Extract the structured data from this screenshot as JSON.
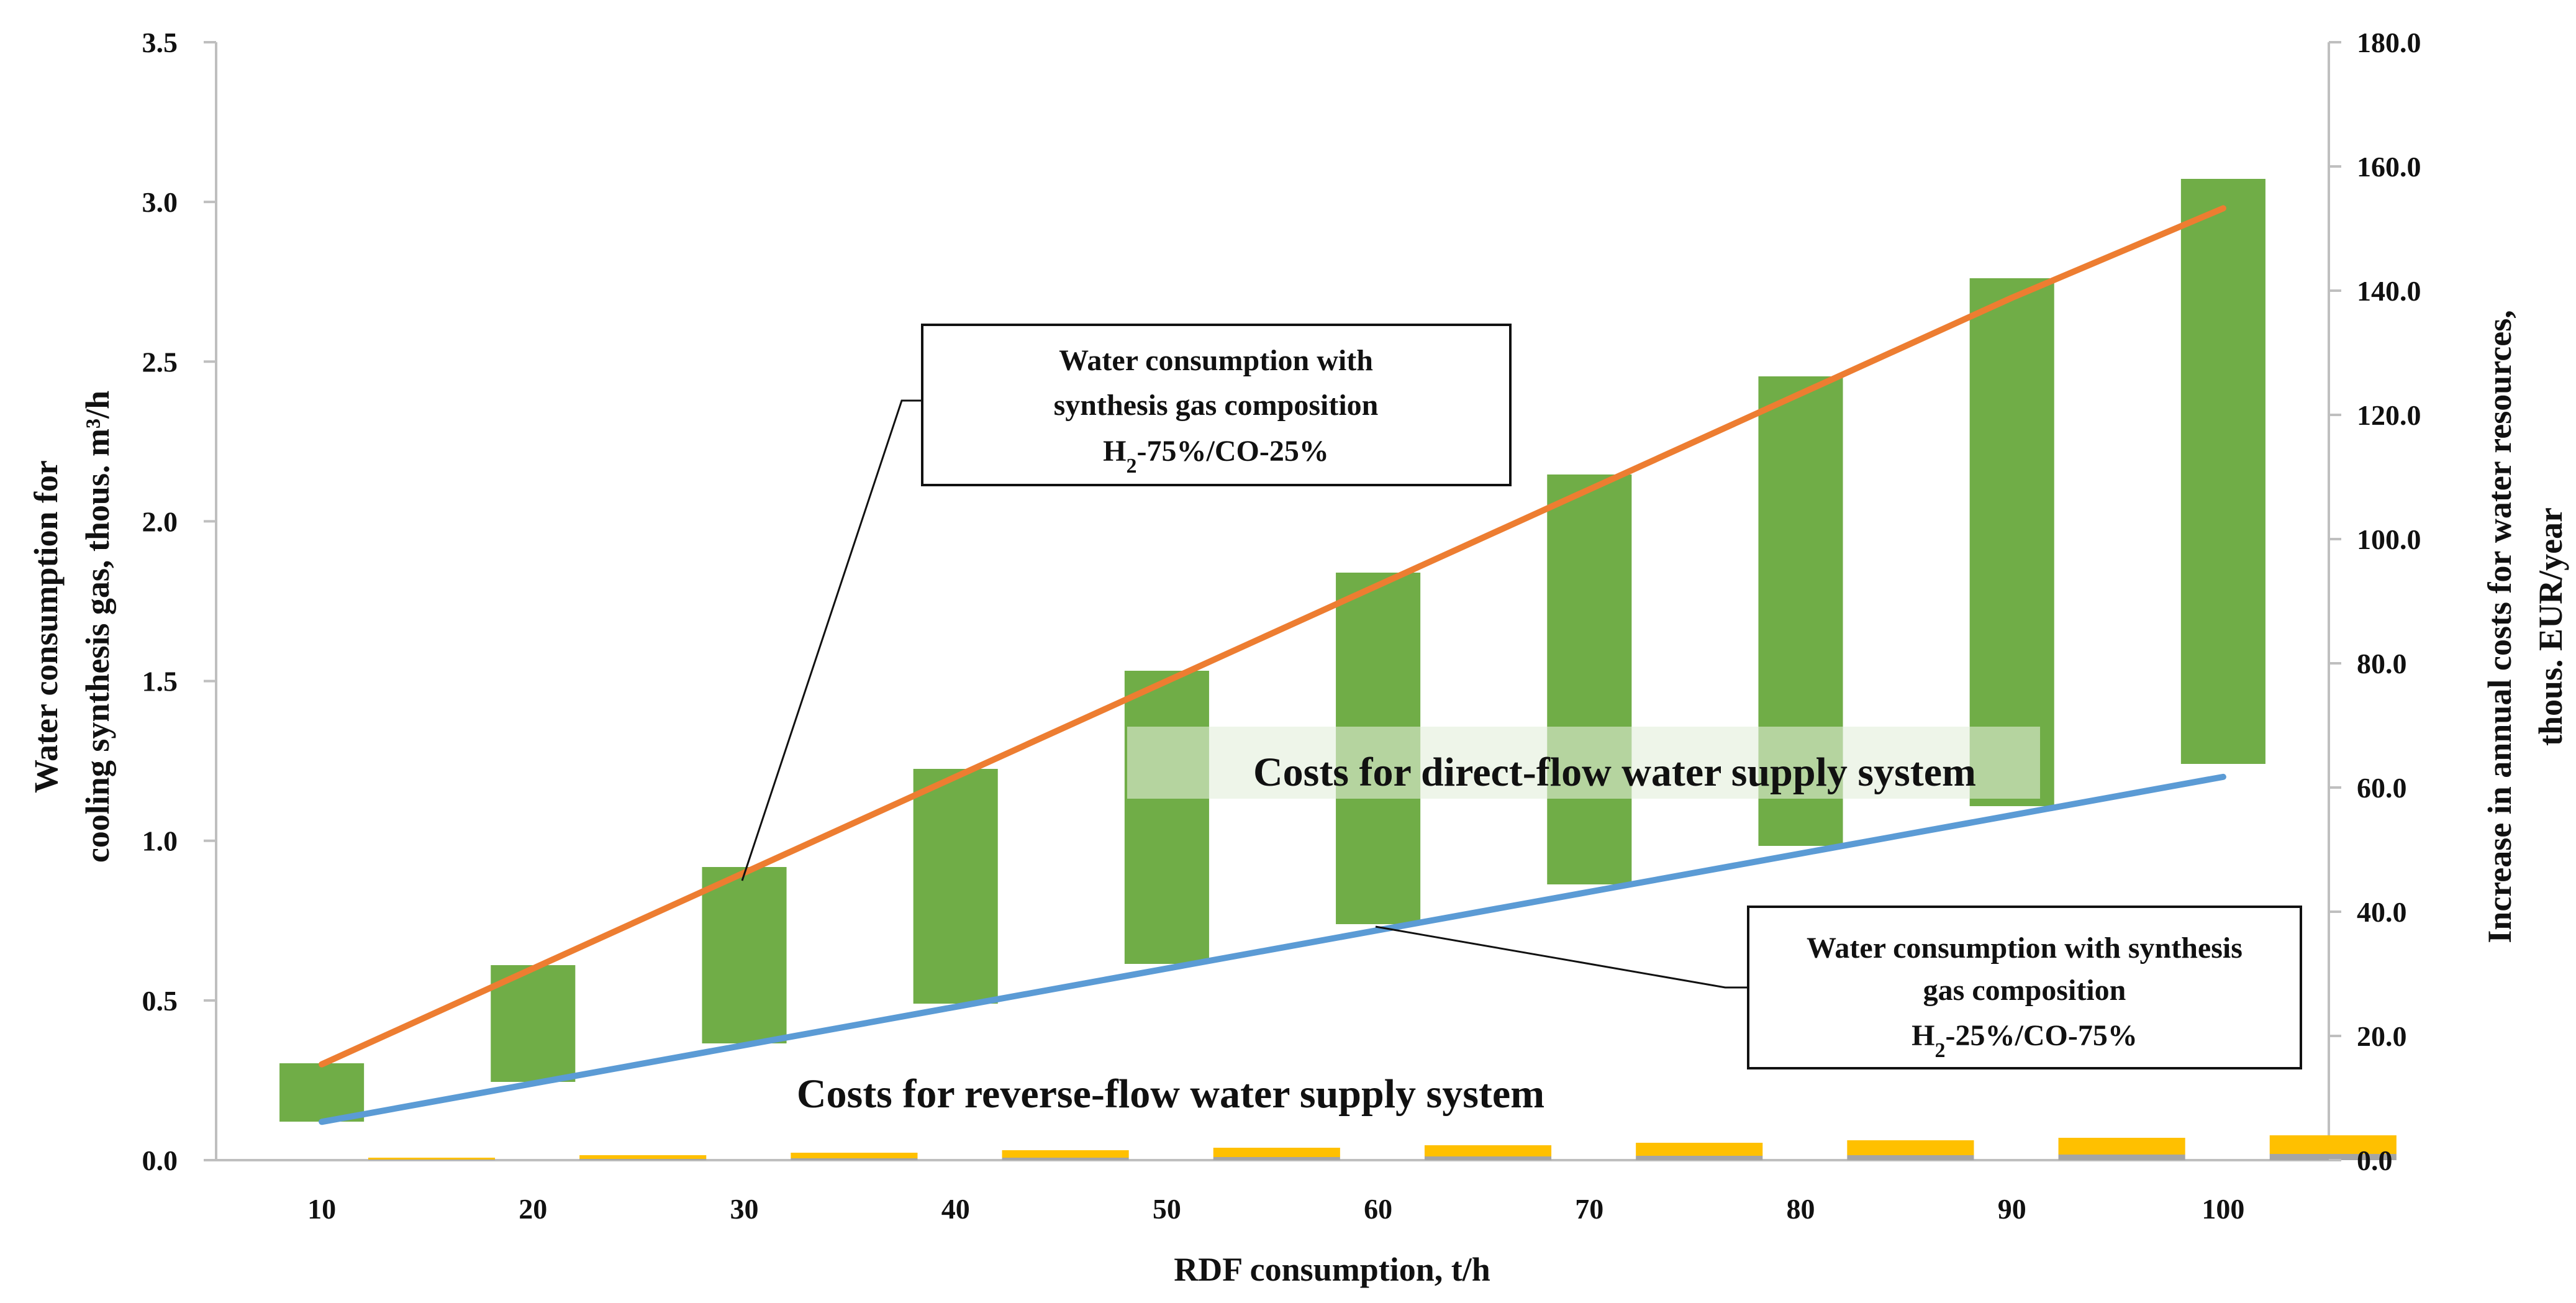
{
  "chart_data": {
    "type": "bar",
    "xlabel": "RDF consumption, t/h",
    "ylabel_left": [
      "Water consumption for",
      "cooling synthesis gas, thous. m³/h"
    ],
    "ylabel_right": [
      "Increase in annual costs for water resources,",
      "thous. EUR/year"
    ],
    "categories": [
      "10",
      "20",
      "30",
      "40",
      "50",
      "60",
      "70",
      "80",
      "90",
      "100"
    ],
    "left_axis": {
      "ylim": [
        0,
        3.5
      ],
      "ticks": [
        "0.0",
        "0.5",
        "1.0",
        "1.5",
        "2.0",
        "2.5",
        "3.0",
        "3.5"
      ]
    },
    "right_axis": {
      "ylim": [
        0,
        180
      ],
      "ticks": [
        "0.0",
        "20.0",
        "40.0",
        "60.0",
        "80.0",
        "100.0",
        "120.0",
        "140.0",
        "160.0",
        "180.0"
      ]
    },
    "floating_bars": {
      "name": "Costs for direct-flow water supply system",
      "axis": "right",
      "color": "#70ad47",
      "low": [
        6.2,
        12.6,
        18.8,
        25.2,
        31.6,
        38.0,
        44.4,
        50.6,
        57.0,
        63.8
      ],
      "high": [
        15.6,
        31.4,
        47.2,
        63.0,
        78.8,
        94.6,
        110.4,
        126.2,
        142.0,
        158.0
      ]
    },
    "stacked_small_bars": {
      "axis": "right",
      "series": [
        {
          "name": "grey",
          "color": "#a5a5a5",
          "values": [
            0.1,
            0.2,
            0.3,
            0.4,
            0.5,
            0.6,
            0.7,
            0.8,
            0.9,
            1.0
          ]
        },
        {
          "name": "yellow",
          "color": "#ffc000",
          "values": [
            0.3,
            0.6,
            0.9,
            1.2,
            1.5,
            1.8,
            2.1,
            2.4,
            2.7,
            3.0
          ]
        }
      ]
    },
    "lines": [
      {
        "name": "Water consumption with synthesis gas composition H2-75%/CO-25%",
        "axis": "left",
        "color": "#ed7d31",
        "values": [
          0.3,
          0.6,
          0.9,
          1.2,
          1.5,
          1.8,
          2.1,
          2.4,
          2.7,
          2.98
        ]
      },
      {
        "name": "Water consumption with synthesis gas composition H2-25%/CO-75%",
        "axis": "left",
        "color": "#5b9bd5",
        "values": [
          0.12,
          0.24,
          0.36,
          0.48,
          0.6,
          0.72,
          0.84,
          0.96,
          1.08,
          1.2
        ]
      }
    ],
    "annotations": {
      "callout_top": {
        "line1": "Water consumption with",
        "line2": "synthesis gas composition",
        "line3_pre": "H",
        "line3_sub": "2",
        "line3_post": "-75%/CO-25%"
      },
      "callout_bottom": {
        "line1": "Water consumption with synthesis",
        "line2": "gas composition",
        "line3_pre": "H",
        "line3_sub": "2",
        "line3_post": "-25%/CO-75%"
      },
      "band_direct": "Costs for direct-flow water supply system",
      "band_reverse": "Costs for reverse-flow water supply system"
    }
  }
}
